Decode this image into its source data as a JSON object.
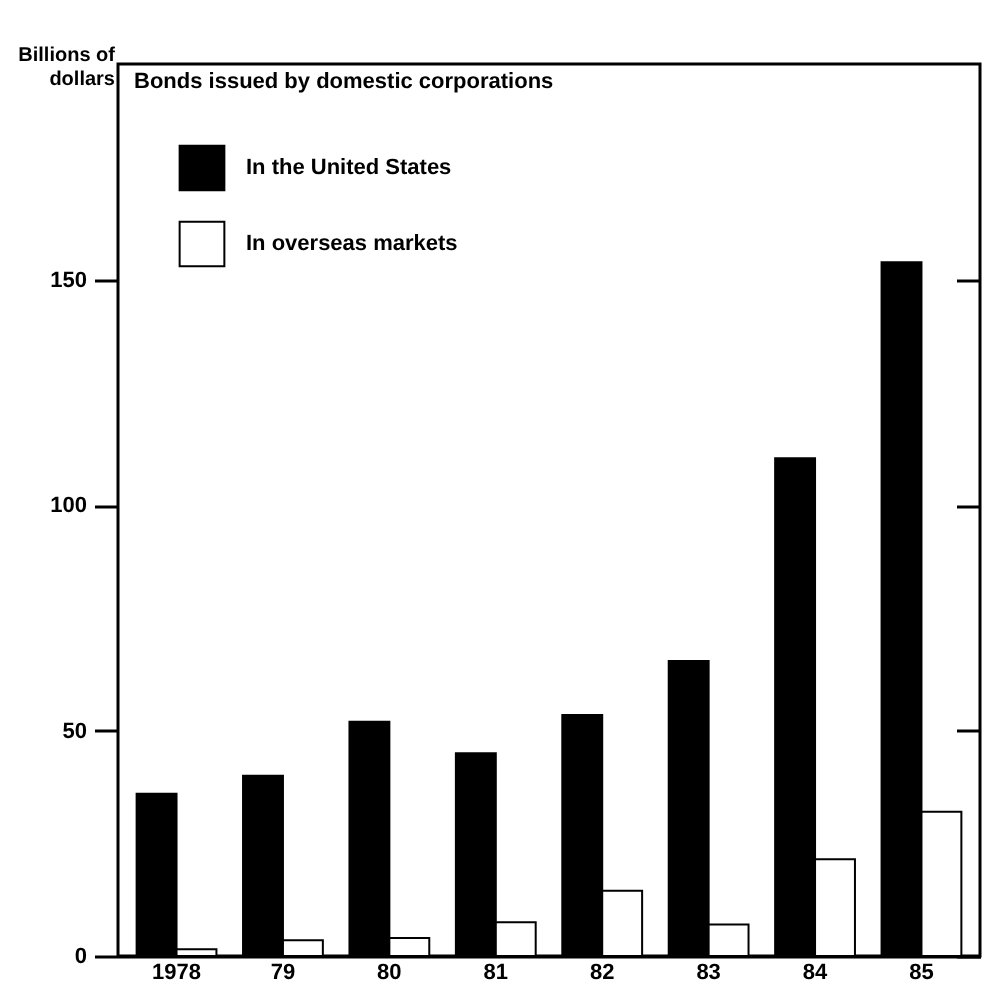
{
  "chart_data": {
    "type": "bar",
    "title": "Bonds issued by domestic corporations",
    "ylabel": "Billions of dollars",
    "categories": [
      "1978",
      "79",
      "80",
      "81",
      "82",
      "83",
      "84",
      "85"
    ],
    "series": [
      {
        "name": "In the United States",
        "color": "#000000",
        "values": [
          36,
          40,
          52,
          45,
          53.5,
          65.5,
          110.5,
          154
        ]
      },
      {
        "name": "In overseas markets",
        "color": "#ffffff",
        "values": [
          1.5,
          3.5,
          4,
          7.5,
          14.5,
          7,
          21.5,
          32
        ]
      }
    ],
    "ylim": [
      0,
      198
    ],
    "yticks": [
      0,
      50,
      100,
      150
    ],
    "grid": false,
    "legend": "top left"
  }
}
